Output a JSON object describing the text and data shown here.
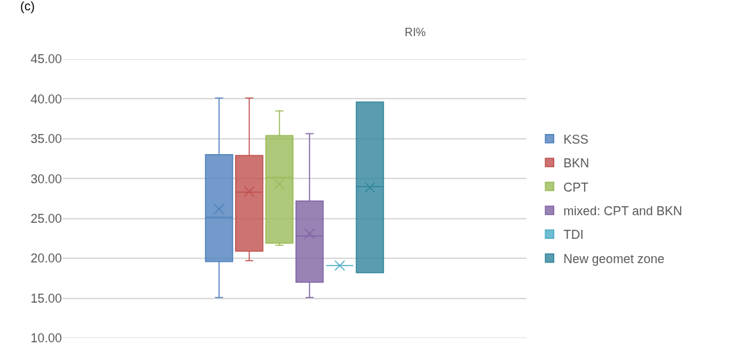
{
  "chart_data": {
    "type": "box",
    "title": "RI%",
    "categories": [
      null
    ],
    "series": [
      {
        "name": "KSS",
        "color": "#4f81bd",
        "boxes": [
          {
            "low": 15.1,
            "q1": 19.6,
            "median": 25.15,
            "q3": 33.0,
            "high": 40.1,
            "mean": 26.2
          }
        ]
      },
      {
        "name": "BKN",
        "color": "#c0504d",
        "boxes": [
          {
            "low": 19.7,
            "q1": 20.9,
            "median": 28.3,
            "q3": 32.9,
            "high": 40.1,
            "mean": 28.4
          }
        ]
      },
      {
        "name": "CPT",
        "color": "#9bbb59",
        "boxes": [
          {
            "low": 21.65,
            "q1": 21.9,
            "median": 30.15,
            "q3": 35.4,
            "high": 38.5,
            "mean": 29.3
          }
        ]
      },
      {
        "name": "mixed: CPT and BKN",
        "color": "#8064a2",
        "boxes": [
          {
            "low": 15.1,
            "q1": 17.0,
            "median": 22.8,
            "q3": 27.2,
            "high": 35.65,
            "mean": 23.1
          }
        ]
      },
      {
        "name": "TDI",
        "color": "#4bacc6",
        "boxes": [
          {
            "low": 19.1,
            "q1": 19.1,
            "median": 19.1,
            "q3": 19.1,
            "high": 19.1,
            "mean": 19.1
          }
        ]
      },
      {
        "name": "New geomet zone",
        "color": "#31859c",
        "boxes": [
          {
            "low": 18.2,
            "q1": 18.2,
            "median": 29.0,
            "q3": 39.6,
            "high": 39.6,
            "mean": 28.9
          }
        ]
      }
    ],
    "ylim": [
      10,
      45
    ],
    "yticks": [
      {
        "value": 10,
        "label": "10.00"
      },
      {
        "value": 15,
        "label": "15.00"
      },
      {
        "value": 20,
        "label": "20.00"
      },
      {
        "value": 25,
        "label": "25.00"
      },
      {
        "value": 30,
        "label": "30.00"
      },
      {
        "value": 35,
        "label": "35.00"
      },
      {
        "value": 40,
        "label": "40.00"
      },
      {
        "value": 45,
        "label": "45.00"
      }
    ],
    "grid": "y",
    "legend": "right",
    "annotations": [
      "(c)"
    ]
  }
}
